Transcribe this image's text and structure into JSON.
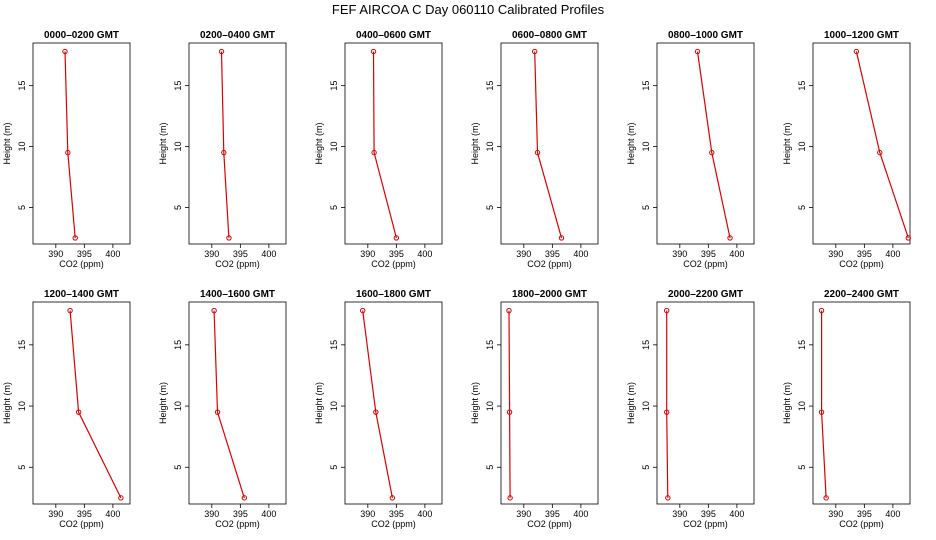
{
  "title": "FEF AIRCOA C  Day 060110  Calibrated Profiles",
  "colors": {
    "series": "#dd0000",
    "axis": "#000000"
  },
  "chart_data": {
    "type": "line",
    "layout": "2 rows x 6 panels",
    "xlabel": "CO2 (ppm)",
    "ylabel": "Height (m)",
    "xlim": [
      386,
      403
    ],
    "ylim": [
      2,
      18.5
    ],
    "xticks": [
      390,
      395,
      400
    ],
    "yticks": [
      5,
      10,
      15
    ],
    "heights": [
      17.8,
      9.5,
      2.5
    ],
    "panels": [
      {
        "title": "0000–0200 GMT",
        "co2": [
          391.6,
          392.1,
          393.4
        ]
      },
      {
        "title": "0200–0400 GMT",
        "co2": [
          391.7,
          392.1,
          393.0
        ]
      },
      {
        "title": "0400–0600 GMT",
        "co2": [
          391.0,
          391.1,
          395.0
        ]
      },
      {
        "title": "0600–0800 GMT",
        "co2": [
          391.9,
          392.4,
          396.6
        ]
      },
      {
        "title": "0800–1000 GMT",
        "co2": [
          393.1,
          395.6,
          398.8
        ]
      },
      {
        "title": "1000–1200 GMT",
        "co2": [
          393.6,
          397.7,
          402.7
        ]
      },
      {
        "title": "1200–1400 GMT",
        "co2": [
          392.5,
          394.0,
          401.4
        ]
      },
      {
        "title": "1400–1600 GMT",
        "co2": [
          390.4,
          391.0,
          395.7
        ]
      },
      {
        "title": "1600–1800 GMT",
        "co2": [
          389.1,
          391.4,
          394.3
        ]
      },
      {
        "title": "1800–2000 GMT",
        "co2": [
          387.4,
          387.5,
          387.6
        ]
      },
      {
        "title": "2000–2200 GMT",
        "co2": [
          387.7,
          387.7,
          387.9
        ]
      },
      {
        "title": "2200–2400 GMT",
        "co2": [
          387.5,
          387.5,
          388.3
        ]
      }
    ]
  }
}
